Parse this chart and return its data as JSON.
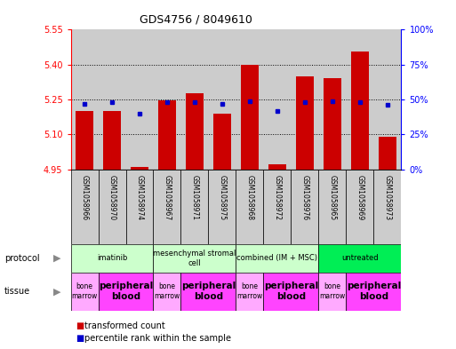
{
  "title": "GDS4756 / 8049610",
  "samples": [
    "GSM1058966",
    "GSM1058970",
    "GSM1058974",
    "GSM1058967",
    "GSM1058971",
    "GSM1058975",
    "GSM1058968",
    "GSM1058972",
    "GSM1058976",
    "GSM1058965",
    "GSM1058969",
    "GSM1058973"
  ],
  "red_values": [
    5.2,
    5.2,
    4.96,
    5.248,
    5.278,
    5.19,
    5.4,
    4.97,
    5.35,
    5.34,
    5.455,
    5.09
  ],
  "blue_values": [
    47,
    48,
    40,
    48,
    48,
    47,
    49,
    42,
    48,
    49,
    48,
    46
  ],
  "ylim_left": [
    4.95,
    5.55
  ],
  "ylim_right": [
    0,
    100
  ],
  "yticks_left": [
    4.95,
    5.1,
    5.25,
    5.4,
    5.55
  ],
  "yticks_right": [
    0,
    25,
    50,
    75,
    100
  ],
  "ytick_labels_right": [
    "0%",
    "25%",
    "50%",
    "75%",
    "100%"
  ],
  "bar_color": "#cc0000",
  "dot_color": "#0000cc",
  "protocols": [
    {
      "label": "imatinib",
      "start": 0,
      "end": 3,
      "color": "#ccffcc"
    },
    {
      "label": "mesenchymal stromal\ncell",
      "start": 3,
      "end": 6,
      "color": "#ccffcc"
    },
    {
      "label": "combined (IM + MSC)",
      "start": 6,
      "end": 9,
      "color": "#ccffcc"
    },
    {
      "label": "untreated",
      "start": 9,
      "end": 12,
      "color": "#00ee55"
    }
  ],
  "tissues": [
    {
      "label": "bone\nmarrow",
      "start": 0,
      "end": 1,
      "color": "#ffaaff",
      "bold": false
    },
    {
      "label": "peripheral\nblood",
      "start": 1,
      "end": 3,
      "color": "#ff44ff",
      "bold": true
    },
    {
      "label": "bone\nmarrow",
      "start": 3,
      "end": 4,
      "color": "#ffaaff",
      "bold": false
    },
    {
      "label": "peripheral\nblood",
      "start": 4,
      "end": 6,
      "color": "#ff44ff",
      "bold": true
    },
    {
      "label": "bone\nmarrow",
      "start": 6,
      "end": 7,
      "color": "#ffaaff",
      "bold": false
    },
    {
      "label": "peripheral\nblood",
      "start": 7,
      "end": 9,
      "color": "#ff44ff",
      "bold": true
    },
    {
      "label": "bone\nmarrow",
      "start": 9,
      "end": 10,
      "color": "#ffaaff",
      "bold": false
    },
    {
      "label": "peripheral\nblood",
      "start": 10,
      "end": 12,
      "color": "#ff44ff",
      "bold": true
    }
  ],
  "legend_red": "transformed count",
  "legend_blue": "percentile rank within the sample",
  "background_color": "#ffffff",
  "base_value": 4.95,
  "sample_bg_color": "#cccccc",
  "gridline_ticks": [
    5.1,
    5.25,
    5.4
  ]
}
